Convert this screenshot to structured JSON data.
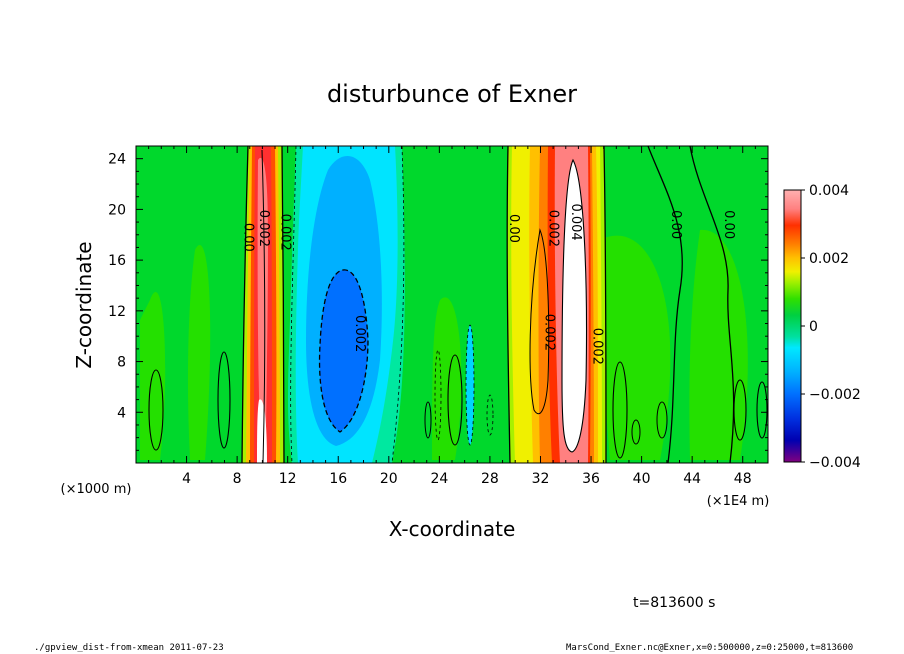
{
  "chart_data": {
    "type": "heatmap",
    "title": "disturbunce of Exner",
    "xlabel": "X-coordinate",
    "ylabel": "Z-coordinate",
    "x_unit_left": "(×1000 m)",
    "x_unit_right": "(×1E4 m)",
    "xlim": [
      0,
      50
    ],
    "ylim": [
      0,
      25
    ],
    "x_ticks": [
      "4",
      "8",
      "12",
      "16",
      "20",
      "24",
      "28",
      "32",
      "36",
      "40",
      "44",
      "48"
    ],
    "x_tick_values": [
      4,
      8,
      12,
      16,
      20,
      24,
      28,
      32,
      36,
      40,
      44,
      48
    ],
    "y_ticks": [
      "4",
      "8",
      "12",
      "16",
      "20",
      "24"
    ],
    "y_tick_values": [
      4,
      8,
      12,
      16,
      20,
      24
    ],
    "colorbar": {
      "min": -0.004,
      "max": 0.004,
      "labels": [
        "0.004",
        "0.002",
        "0",
        "−0.002",
        "−0.004"
      ],
      "label_values": [
        0.004,
        0.002,
        0,
        -0.002,
        -0.004
      ],
      "colors": [
        "#800080",
        "#0000b0",
        "#0030e0",
        "#0070ff",
        "#00b0ff",
        "#00e8ff",
        "#00e0a0",
        "#00d040",
        "#30e000",
        "#a0f000",
        "#f0f000",
        "#ffc000",
        "#ff8000",
        "#ff3000",
        "#ff8080",
        "#ffb0b0"
      ]
    },
    "regions": [
      {
        "name": "positive-band-x10",
        "x": [
          8.9,
          11.2
        ],
        "z": [
          0,
          25
        ],
        "value": 0.004
      },
      {
        "name": "positive-band-x35",
        "x": [
          29.5,
          37.2
        ],
        "z": [
          0,
          25
        ],
        "value": 0.004
      },
      {
        "name": "negative-region-x16",
        "x": [
          12.3,
          20.7
        ],
        "z": [
          0,
          25
        ],
        "value": -0.002
      },
      {
        "name": "minimum-x16",
        "x": [
          14.3,
          18.0
        ],
        "z": [
          2.4,
          15.3
        ],
        "value": -0.002
      }
    ],
    "contour_labels": [
      {
        "text": "0.00",
        "x": 8.6,
        "z": 17.8
      },
      {
        "text": "0.002",
        "x": 9.8,
        "z": 18.5
      },
      {
        "text": "0.002",
        "x": 11.5,
        "z": 18.2
      },
      {
        "text": "0.002",
        "x": 17.4,
        "z": 10.2
      },
      {
        "text": "0.00",
        "x": 29.6,
        "z": 18.5
      },
      {
        "text": "0.002",
        "x": 32.4,
        "z": 10.3
      },
      {
        "text": "0.002",
        "x": 32.7,
        "z": 18.5
      },
      {
        "text": "0.004",
        "x": 34.5,
        "z": 19.0
      },
      {
        "text": "0.002",
        "x": 36.2,
        "z": 9.2
      },
      {
        "text": "0.00",
        "x": 42.4,
        "z": 18.8
      },
      {
        "text": "0.00",
        "x": 46.6,
        "z": 18.8
      }
    ]
  },
  "footer": {
    "time": "t=813600 s",
    "left": "./gpview_dist-from-xmean  2011-07-23",
    "right": "MarsCond_Exner.nc@Exner,x=0:500000,z=0:25000,t=813600"
  }
}
